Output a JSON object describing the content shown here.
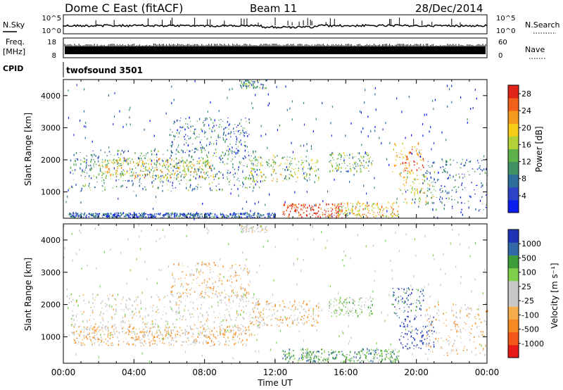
{
  "header": {
    "station": "Dome C East (fitACF)",
    "beam": "Beam 11",
    "date": "28/Dec/2014"
  },
  "top_panels": {
    "nsky_label": "N.Sky",
    "nsky_ticks": [
      "10^5",
      "10^0"
    ],
    "nsearch_label": "N.Search",
    "freq_label_1": "Freq.",
    "freq_label_2": "[MHz]",
    "freq_ticks": [
      "18",
      "8"
    ],
    "nave_label": "Nave",
    "nave_ticks": [
      "60",
      "0"
    ],
    "cpid_label": "CPID",
    "cpid_value": "twofsound 3501"
  },
  "colors": {
    "power_scale": [
      "#0b1ef0",
      "#2c43c8",
      "#2f6e9a",
      "#3f9163",
      "#5fb14a",
      "#b3d23a",
      "#f5cc17",
      "#f59a1c",
      "#f2611c",
      "#e02518"
    ],
    "velocity_scale": [
      "#e61b17",
      "#f2581a",
      "#f58a24",
      "#f5ac4a",
      "#c8c8c8",
      "#c8c8c8",
      "#7fcf4a",
      "#3d9b3a",
      "#3268a8",
      "#1f33b5"
    ]
  },
  "chart_data": [
    {
      "type": "heatmap",
      "name": "power",
      "xlabel": "Time UT",
      "ylabel": "Slant Range [km]",
      "xlim": [
        0,
        24
      ],
      "ylim": [
        180,
        4500
      ],
      "x_ticks": [
        "00:00",
        "04:00",
        "08:00",
        "12:00",
        "16:00",
        "20:00",
        "00:00"
      ],
      "y_ticks": [
        1000,
        2000,
        3000,
        4000
      ],
      "colorbar_label": "Power [dB]",
      "colorbar_ticks": [
        4,
        8,
        12,
        16,
        20,
        24,
        28
      ],
      "colorbar_range": [
        0,
        30
      ],
      "regions": [
        {
          "t0": 0.3,
          "t1": 11.2,
          "r0": 1000,
          "r1": 2300,
          "value": 10
        },
        {
          "t0": 2.0,
          "t1": 8.5,
          "r0": 1400,
          "r1": 2000,
          "value": 18
        },
        {
          "t0": 6.0,
          "t1": 10.5,
          "r0": 2200,
          "r1": 3300,
          "value": 8
        },
        {
          "t0": 10.5,
          "t1": 14.5,
          "r0": 1300,
          "r1": 2100,
          "value": 15
        },
        {
          "t0": 12.4,
          "t1": 15.8,
          "r0": 180,
          "r1": 600,
          "value": 28
        },
        {
          "t0": 15.5,
          "t1": 19.0,
          "r0": 180,
          "r1": 650,
          "value": 20
        },
        {
          "t0": 18.6,
          "t1": 20.4,
          "r0": 1600,
          "r1": 2500,
          "value": 24
        },
        {
          "t0": 19.0,
          "t1": 21.0,
          "r0": 600,
          "r1": 1600,
          "value": 17
        },
        {
          "t0": 15.0,
          "t1": 17.5,
          "r0": 1600,
          "r1": 2200,
          "value": 12
        },
        {
          "t0": 20.5,
          "t1": 24.0,
          "r0": 400,
          "r1": 2000,
          "value": 8
        },
        {
          "t0": 0.3,
          "t1": 12.0,
          "r0": 180,
          "r1": 320,
          "value": 6
        },
        {
          "t0": 10.0,
          "t1": 11.5,
          "r0": 4200,
          "r1": 4450,
          "value": 10
        }
      ]
    },
    {
      "type": "heatmap",
      "name": "velocity",
      "xlabel": "Time UT",
      "ylabel": "Slant Range [km]",
      "xlim": [
        0,
        24
      ],
      "ylim": [
        180,
        4500
      ],
      "x_ticks": [
        "00:00",
        "04:00",
        "08:00",
        "12:00",
        "16:00",
        "20:00",
        "00:00"
      ],
      "y_ticks": [
        1000,
        2000,
        3000,
        4000
      ],
      "colorbar_label": "Velocity [m s⁻¹]",
      "colorbar_ticks": [
        "-1000",
        "-500",
        "-100",
        "-25",
        "25",
        "100",
        "500",
        "1000"
      ],
      "regions": [
        {
          "t0": 0.3,
          "t1": 11.2,
          "r0": 1000,
          "r1": 2300,
          "value": "-25"
        },
        {
          "t0": 0.5,
          "t1": 10.5,
          "r0": 700,
          "r1": 1300,
          "value": "-100"
        },
        {
          "t0": 6.0,
          "t1": 10.5,
          "r0": 2200,
          "r1": 3300,
          "value": "-100"
        },
        {
          "t0": 10.5,
          "t1": 14.5,
          "r0": 1300,
          "r1": 2100,
          "value": "-100"
        },
        {
          "t0": 12.4,
          "t1": 19.0,
          "r0": 180,
          "r1": 600,
          "value": "100"
        },
        {
          "t0": 18.6,
          "t1": 20.4,
          "r0": 1600,
          "r1": 2500,
          "value": "500"
        },
        {
          "t0": 19.0,
          "t1": 21.0,
          "r0": 600,
          "r1": 1600,
          "value": "1000"
        },
        {
          "t0": 15.0,
          "t1": 17.5,
          "r0": 1600,
          "r1": 2200,
          "value": "25"
        },
        {
          "t0": 20.5,
          "t1": 24.0,
          "r0": 400,
          "r1": 2000,
          "value": "-100"
        },
        {
          "t0": 10.0,
          "t1": 11.5,
          "r0": 4200,
          "r1": 4450,
          "value": "-25"
        }
      ]
    }
  ]
}
